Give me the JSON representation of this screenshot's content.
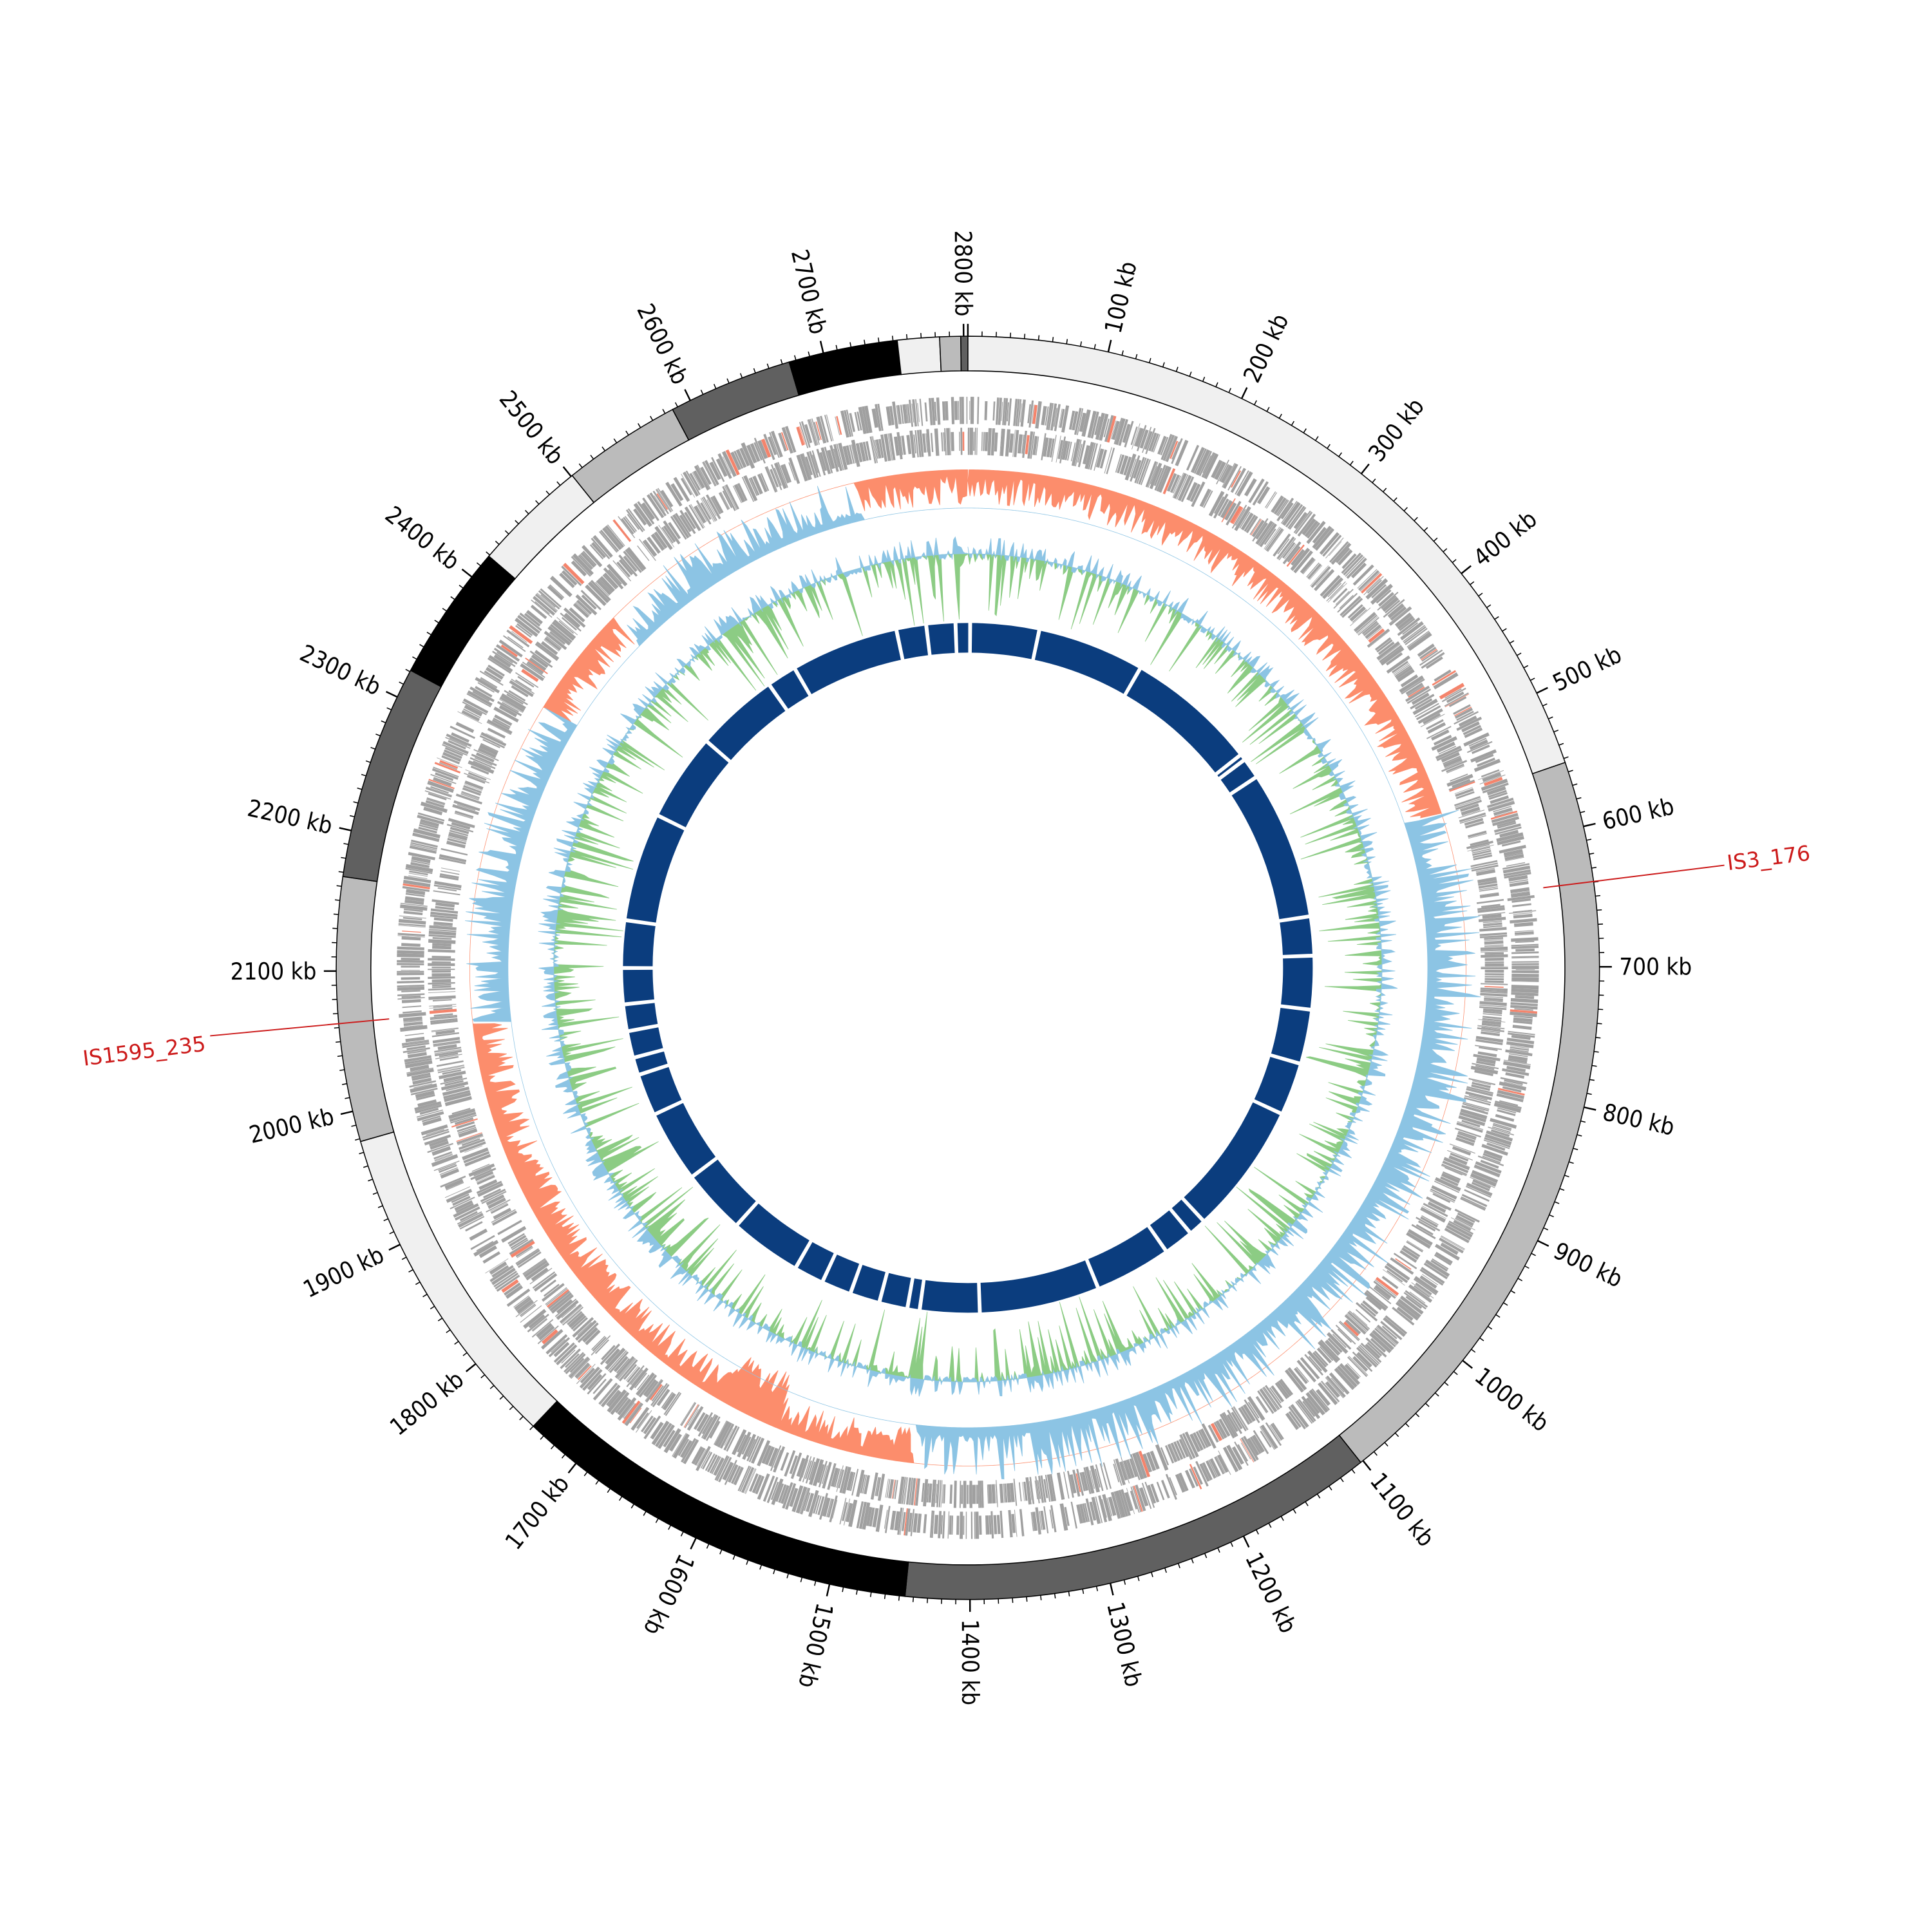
{
  "chart_data": {
    "type": "circular-genome",
    "genome_length_kb": 2803,
    "tick_unit": "kb",
    "major_tick_interval_kb": 100,
    "minor_tick_interval_kb": 10,
    "tick_labels": [
      "100 kb",
      "200 kb",
      "300 kb",
      "400 kb",
      "500 kb",
      "600 kb",
      "700 kb",
      "800 kb",
      "900 kb",
      "1000 kb",
      "1100 kb",
      "1200 kb",
      "1300 kb",
      "1400 kb",
      "1500 kb",
      "1600 kb",
      "1700 kb",
      "1800 kb",
      "1900 kb",
      "2000 kb",
      "2100 kb",
      "2200 kb",
      "2300 kb",
      "2400 kb",
      "2500 kb",
      "2600 kb",
      "2700 kb",
      "2800 kb"
    ],
    "bands": [
      {
        "start": 0,
        "end": 553,
        "color": "#f0f0f0"
      },
      {
        "start": 553,
        "end": 1102,
        "color": "#bbbbbb"
      },
      {
        "start": 1102,
        "end": 1446,
        "color": "#606060"
      },
      {
        "start": 1446,
        "end": 1740,
        "color": "#000000"
      },
      {
        "start": 1740,
        "end": 1978,
        "color": "#f0f0f0"
      },
      {
        "start": 1978,
        "end": 2167,
        "color": "#bbbbbb"
      },
      {
        "start": 2167,
        "end": 2321,
        "color": "#606060"
      },
      {
        "start": 2321,
        "end": 2419,
        "color": "#000000"
      },
      {
        "start": 2419,
        "end": 2501,
        "color": "#f0f0f0"
      },
      {
        "start": 2501,
        "end": 2586,
        "color": "#bbbbbb"
      },
      {
        "start": 2586,
        "end": 2675,
        "color": "#606060"
      },
      {
        "start": 2675,
        "end": 2753,
        "color": "#000000"
      },
      {
        "start": 2753,
        "end": 2783,
        "color": "#f0f0f0"
      },
      {
        "start": 2783,
        "end": 2798,
        "color": "#bbbbbb"
      },
      {
        "start": 2798,
        "end": 2803,
        "color": "#606060"
      }
    ],
    "tracks": [
      {
        "name": "genes",
        "colors": [
          "#a0a0a0",
          "#f4846c"
        ]
      },
      {
        "name": "gc-skew",
        "colors": [
          "#fc8d6c",
          "#8cc4e4"
        ]
      },
      {
        "name": "gc-content",
        "colors": [
          "#8ccc84",
          "#8cc4e4"
        ]
      },
      {
        "name": "synteny-blocks",
        "color": "#0b3d7e"
      }
    ],
    "inner_block_gaps_kb": [
      3,
      93,
      233,
      405,
      413,
      440,
      634,
      685,
      755,
      826,
      895,
      1067,
      1090,
      1129,
      1229,
      1386,
      1464,
      1480,
      1517,
      1556,
      1595,
      1634,
      1728,
      1813,
      1907,
      1962,
      1985,
      2020,
      2055,
      2102,
      2164,
      2306,
      2421,
      2530,
      2569,
      2710,
      2749,
      2787
    ],
    "annotations": [
      {
        "label": "IS3_176",
        "position_kb": 639,
        "color": "#cc1a1a"
      },
      {
        "label": "IS1595_235",
        "position_kb": 2063,
        "color": "#cc1a1a"
      }
    ]
  }
}
